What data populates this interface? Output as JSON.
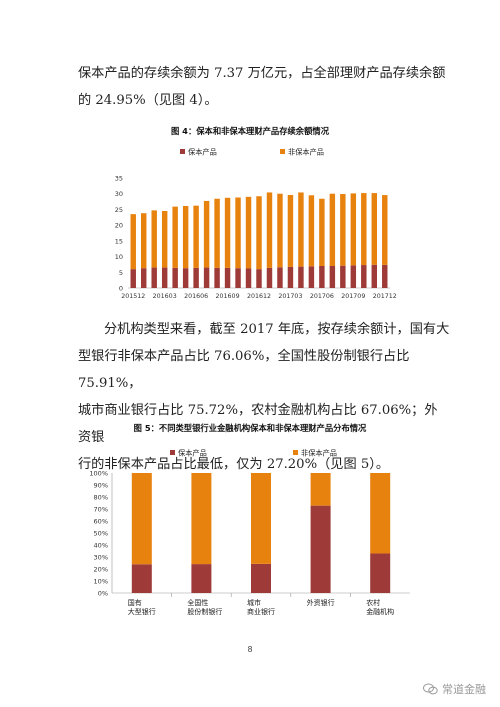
{
  "paragraph1": {
    "line1": "保本产品的存续余额为 7.37 万亿元，占全部理财产品存续余额",
    "line2": "的 24.95%（见图 4）。"
  },
  "figure4": {
    "title": "图 4：保本和非保本理财产品存续余额情况"
  },
  "paragraph2": {
    "line1": "分机构类型来看，截至 2017 年底，按存续余额计，国有大",
    "line2": "型银行非保本产品占比 76.06%，全国性股份制银行占比 75.91%，",
    "line3": "城市商业银行占比 75.72%，农村金融机构占比 67.06%；外资银",
    "line4": "行的非保本产品占比最低，仅为 27.20%（见图 5）。"
  },
  "figure5": {
    "title": "图 5：不同类型银行业金融机构保本和非保本理财产品分布情况"
  },
  "page_number": "8",
  "watermark": "常道金融",
  "colors": {
    "guaranteed": "#9E3A38",
    "non_guaranteed": "#E8820F"
  },
  "chart_data": [
    {
      "type": "bar",
      "stacked": true,
      "categories": [
        "201512",
        "201601",
        "201602",
        "201603",
        "201604",
        "201605",
        "201606",
        "201607",
        "201608",
        "201609",
        "201610",
        "201611",
        "201612",
        "201701",
        "201702",
        "201703",
        "201704",
        "201705",
        "201706",
        "201707",
        "201708",
        "201709",
        "201710",
        "201711",
        "201712"
      ],
      "tick_labels": [
        "201512",
        "201603",
        "201606",
        "201609",
        "201612",
        "201703",
        "201706",
        "201709",
        "201712"
      ],
      "series": [
        {
          "name": "保本产品",
          "values": [
            6,
            6.3,
            6.5,
            6.5,
            6.4,
            6.3,
            6.4,
            6.5,
            6.4,
            6.4,
            6.3,
            6.2,
            6,
            6.4,
            6.6,
            6.7,
            6.8,
            6.9,
            7,
            7,
            7.1,
            7.2,
            7.3,
            7.4,
            7.37
          ]
        },
        {
          "name": "非保本产品",
          "values": [
            17.5,
            17.5,
            18.2,
            18,
            19.5,
            19.8,
            19.8,
            21.2,
            22,
            22.3,
            22.5,
            22.8,
            23.2,
            24,
            23.4,
            22.9,
            23.6,
            22.6,
            21.4,
            23,
            22.8,
            22.9,
            22.9,
            22.8,
            22.2
          ]
        }
      ],
      "ylim": [
        0,
        35
      ],
      "yticks": [
        0,
        5,
        10,
        15,
        20,
        25,
        30,
        35
      ],
      "legend": "top"
    },
    {
      "type": "bar",
      "stacked": true,
      "percent": true,
      "categories": [
        [
          "国有",
          "大型银行"
        ],
        [
          "全国性",
          "股份制银行"
        ],
        [
          "城市",
          "商业银行"
        ],
        [
          "外资银行"
        ],
        [
          "农村",
          "金融机构"
        ]
      ],
      "series": [
        {
          "name": "保本产品",
          "values": [
            23.94,
            24.09,
            24.28,
            72.8,
            32.94
          ]
        },
        {
          "name": "非保本产品",
          "values": [
            76.06,
            75.91,
            75.72,
            27.2,
            67.06
          ]
        }
      ],
      "ylim": [
        0,
        100
      ],
      "yticks": [
        "0%",
        "10%",
        "20%",
        "30%",
        "40%",
        "50%",
        "60%",
        "70%",
        "80%",
        "90%",
        "100%"
      ],
      "legend": "top"
    }
  ]
}
